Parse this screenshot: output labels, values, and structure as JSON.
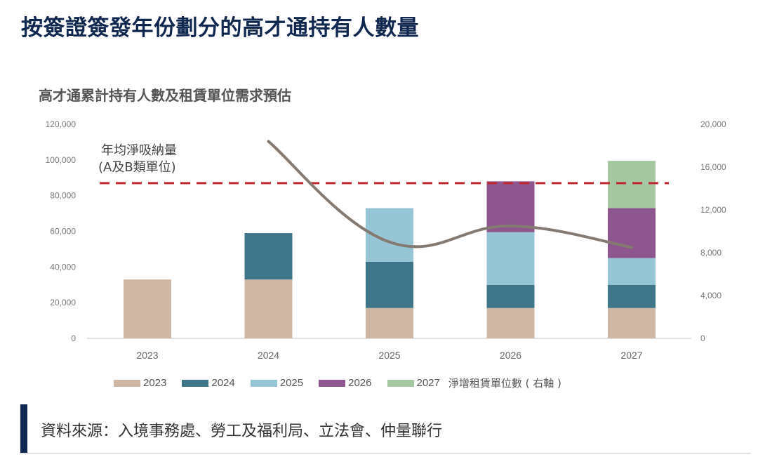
{
  "header": {
    "title": "按簽證簽發年份劃分的高才通持有人數量"
  },
  "chart_data": {
    "type": "bar",
    "stacked": true,
    "title": "高才通累計持有人數及租賃單位需求預估",
    "xlabel": "",
    "ylabel": "",
    "categories": [
      "2023",
      "2024",
      "2025",
      "2026",
      "2027"
    ],
    "series": [
      {
        "name": "2023",
        "color": "#cfb7a6",
        "values": [
          33000,
          33000,
          17000,
          17000,
          17000
        ]
      },
      {
        "name": "2024",
        "color": "#3f7589",
        "values": [
          0,
          26000,
          26000,
          13000,
          13000
        ]
      },
      {
        "name": "2025",
        "color": "#96c6d6",
        "values": [
          0,
          0,
          30000,
          29500,
          15000
        ]
      },
      {
        "name": "2026",
        "color": "#8e568e",
        "values": [
          0,
          0,
          0,
          28500,
          28000
        ]
      },
      {
        "name": "2027",
        "color": "#a5c8a2",
        "values": [
          0,
          0,
          0,
          0,
          26500
        ]
      }
    ],
    "line_series": {
      "name": "淨增租賃單位數(右軸)",
      "legend_label": "淨增租賃單位數 ( 右軸 )",
      "axis": "right",
      "color": "#857a72",
      "categories": [
        "2024",
        "2025",
        "2026",
        "2027"
      ],
      "values": [
        18400,
        9000,
        10500,
        8500
      ]
    },
    "reference_line": {
      "label_line1": "年均淨吸納量",
      "label_line2": "(A及B類單位)",
      "axis": "right",
      "value": 14500,
      "color": "#c0262d",
      "style": "dashed"
    },
    "ylim": [
      0,
      120000
    ],
    "yticks": [
      "0",
      "20,000",
      "40,000",
      "60,000",
      "80,000",
      "100,000",
      "120,000"
    ],
    "ytick_values": [
      0,
      20000,
      40000,
      60000,
      80000,
      100000,
      120000
    ],
    "y2lim": [
      0,
      20000
    ],
    "y2ticks": [
      "0",
      "4,000",
      "8,000",
      "12,000",
      "16,000",
      "20,000"
    ],
    "y2tick_values": [
      0,
      4000,
      8000,
      12000,
      16000,
      20000
    ],
    "grid": false,
    "legend_position": "bottom"
  },
  "footer": {
    "source": "資料來源：入境事務處、勞工及福利局、立法會、仲量聯行"
  }
}
